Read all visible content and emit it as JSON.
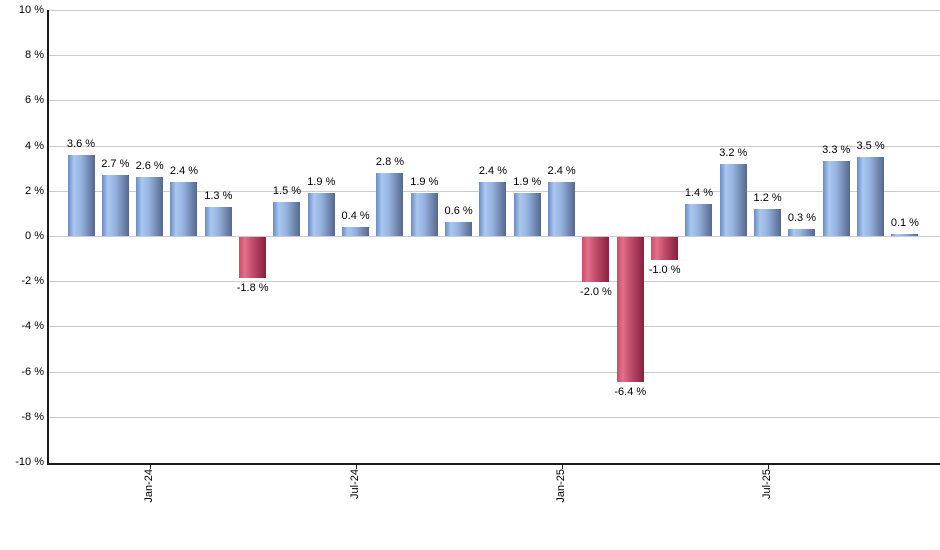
{
  "chart_data": {
    "type": "bar",
    "title": "",
    "xlabel": "",
    "ylabel": "",
    "ylim": [
      -10,
      10
    ],
    "y_tick_step": 2,
    "grid": "horizontal",
    "legend": "none",
    "y_ticks": [
      {
        "value": 10,
        "label": "10 %"
      },
      {
        "value": 8,
        "label": "8 %"
      },
      {
        "value": 6,
        "label": "6 %"
      },
      {
        "value": 4,
        "label": "4 %"
      },
      {
        "value": 2,
        "label": "2 %"
      },
      {
        "value": 0,
        "label": "0 %"
      },
      {
        "value": -2,
        "label": "-2 %"
      },
      {
        "value": -4,
        "label": "-4 %"
      },
      {
        "value": -6,
        "label": "-6 %"
      },
      {
        "value": -8,
        "label": "-8 %"
      },
      {
        "value": -10,
        "label": "-10 %"
      }
    ],
    "values": [
      3.6,
      2.7,
      2.6,
      2.4,
      1.3,
      -1.8,
      1.5,
      1.9,
      0.4,
      2.8,
      1.9,
      0.6,
      2.4,
      1.9,
      2.4,
      -2.0,
      -6.4,
      -1.0,
      1.4,
      3.2,
      1.2,
      0.3,
      3.3,
      3.5,
      0.1
    ],
    "bar_labels": [
      "3.6 %",
      "2.7 %",
      "2.6 %",
      "2.4 %",
      "1.3 %",
      "-1.8 %",
      "1.5 %",
      "1.9 %",
      "0.4 %",
      "2.8 %",
      "1.9 %",
      "0.6 %",
      "2.4 %",
      "1.9 %",
      "2.4 %",
      "-2.0 %",
      "-6.4 %",
      "-1.0 %",
      "1.4 %",
      "3.2 %",
      "1.2 %",
      "0.3 %",
      "3.3 %",
      "3.5 %",
      "0.1 %"
    ],
    "x_ticks": [
      {
        "bar_index": 2,
        "label": "Jan-24"
      },
      {
        "bar_index": 8,
        "label": "Jul-24"
      },
      {
        "bar_index": 14,
        "label": "Jan-25"
      },
      {
        "bar_index": 20,
        "label": "Jul-25"
      }
    ],
    "colors": {
      "positive_gradient": [
        "#6a8cc4",
        "#a9c8f0",
        "#97b4e0",
        "#55678e"
      ],
      "negative_gradient": [
        "#d14a69",
        "#e2708a",
        "#c24f6e",
        "#8a1f3f"
      ],
      "gridline": "#cccccc",
      "axis": "#1a1a1a",
      "label_text": "#000000"
    }
  }
}
